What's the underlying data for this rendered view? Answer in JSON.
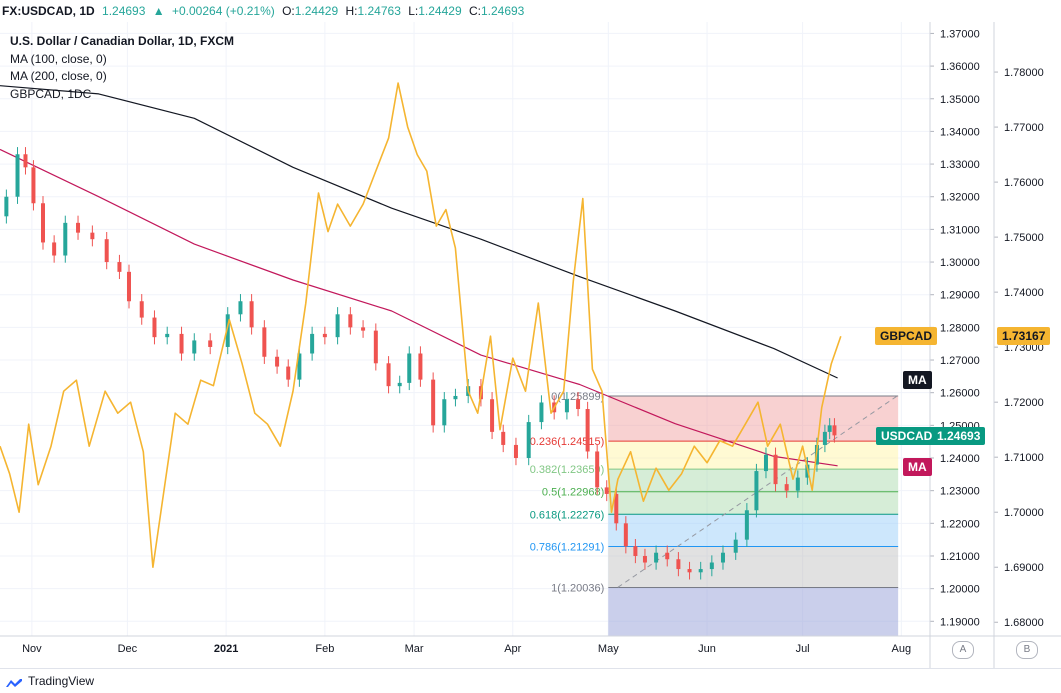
{
  "header": {
    "symbol": "FX:USDCAD, 1D",
    "last": "1.24693",
    "change": "+0.00264 (+0.21%)",
    "o_label": "O:",
    "o": "1.24429",
    "h_label": "H:",
    "h": "1.24763",
    "l_label": "L:",
    "l": "1.24429",
    "c_label": "C:",
    "c": "1.24693"
  },
  "legend": {
    "title": "U.S. Dollar / Canadian Dollar, 1D, FXCM",
    "ma100": "MA (100, close, 0)",
    "ma200": "MA (200, close, 0)",
    "compare": "GBPCAD, 1DC"
  },
  "colors": {
    "up": "#26a69a",
    "down": "#ef5350",
    "gbpcad": "#f5b531",
    "ma100": "#c2185b",
    "ma200": "#131722",
    "fib_0": "#787b86",
    "fib_0236": "#e53935",
    "fib_0382": "#81c784",
    "fib_05": "#4caf50",
    "fib_0618": "#089981",
    "fib_0786": "#2196f3",
    "fib_1": "#787b86"
  },
  "badges": {
    "gbpcad_label": "GBPCAD",
    "gbpcad_value": "1.73167",
    "usdcad_label": "USDCAD",
    "usdcad_value": "1.24693",
    "ma_label_1": "MA",
    "ma_label_2": "MA"
  },
  "footer": {
    "brand": "TradingView",
    "scale_a": "A",
    "scale_b": "B"
  },
  "chart_data": {
    "type": "candlestick",
    "symbol": "USDCAD",
    "x_axis": {
      "ticks": [
        "Nov",
        "Dec",
        "2021",
        "Feb",
        "Mar",
        "Apr",
        "May",
        "Jun",
        "Jul",
        "Aug"
      ],
      "range": [
        "2020-10-22",
        "2021-08-10"
      ]
    },
    "y_axis_left": {
      "label": "USDCAD",
      "ylim": [
        1.1855,
        1.3735
      ],
      "ticks": [
        "1.37000",
        "1.36000",
        "1.35000",
        "1.34000",
        "1.33000",
        "1.32000",
        "1.31000",
        "1.30000",
        "1.29000",
        "1.28000",
        "1.27000",
        "1.26000",
        "1.25000",
        "1.24000",
        "1.23000",
        "1.22000",
        "1.21000",
        "1.20000",
        "1.19000"
      ]
    },
    "y_axis_right": {
      "label": "GBPCAD",
      "ylim": [
        1.6775,
        1.7891
      ],
      "ticks": [
        "1.78000",
        "1.77000",
        "1.76000",
        "1.75000",
        "1.74000",
        "1.73000",
        "1.72000",
        "1.71000",
        "1.70000",
        "1.69000",
        "1.68000"
      ]
    },
    "series": [
      {
        "name": "USDCAD",
        "kind": "candlestick-close-path",
        "points": [
          [
            "2020-10-22",
            1.314
          ],
          [
            "2020-10-26",
            1.32
          ],
          [
            "2020-10-29",
            1.333
          ],
          [
            "2020-10-31",
            1.329
          ],
          [
            "2020-11-03",
            1.318
          ],
          [
            "2020-11-06",
            1.306
          ],
          [
            "2020-11-10",
            1.302
          ],
          [
            "2020-11-13",
            1.312
          ],
          [
            "2020-11-18",
            1.309
          ],
          [
            "2020-11-22",
            1.307
          ],
          [
            "2020-11-27",
            1.3
          ],
          [
            "2020-11-30",
            1.297
          ],
          [
            "2020-12-03",
            1.288
          ],
          [
            "2020-12-08",
            1.283
          ],
          [
            "2020-12-11",
            1.277
          ],
          [
            "2020-12-16",
            1.278
          ],
          [
            "2020-12-20",
            1.272
          ],
          [
            "2020-12-24",
            1.276
          ],
          [
            "2020-12-30",
            1.274
          ],
          [
            "2021-01-04",
            1.284
          ],
          [
            "2021-01-07",
            1.288
          ],
          [
            "2021-01-11",
            1.28
          ],
          [
            "2021-01-15",
            1.271
          ],
          [
            "2021-01-19",
            1.268
          ],
          [
            "2021-01-22",
            1.264
          ],
          [
            "2021-01-26",
            1.272
          ],
          [
            "2021-01-30",
            1.278
          ],
          [
            "2021-02-03",
            1.277
          ],
          [
            "2021-02-07",
            1.284
          ],
          [
            "2021-02-11",
            1.28
          ],
          [
            "2021-02-15",
            1.279
          ],
          [
            "2021-02-19",
            1.269
          ],
          [
            "2021-02-23",
            1.262
          ],
          [
            "2021-02-26",
            1.263
          ],
          [
            "2021-03-01",
            1.272
          ],
          [
            "2021-03-05",
            1.264
          ],
          [
            "2021-03-09",
            1.25
          ],
          [
            "2021-03-12",
            1.258
          ],
          [
            "2021-03-16",
            1.259
          ],
          [
            "2021-03-20",
            1.262
          ],
          [
            "2021-03-24",
            1.258
          ],
          [
            "2021-03-27",
            1.248
          ],
          [
            "2021-03-31",
            1.244
          ],
          [
            "2021-04-04",
            1.24
          ],
          [
            "2021-04-08",
            1.251
          ],
          [
            "2021-04-12",
            1.257
          ],
          [
            "2021-04-16",
            1.254
          ],
          [
            "2021-04-20",
            1.258
          ],
          [
            "2021-04-23",
            1.255
          ],
          [
            "2021-04-26",
            1.242
          ],
          [
            "2021-04-29",
            1.231
          ],
          [
            "2021-05-02",
            1.229
          ],
          [
            "2021-05-05",
            1.22
          ],
          [
            "2021-05-08",
            1.213
          ],
          [
            "2021-05-11",
            1.21
          ],
          [
            "2021-05-14",
            1.208
          ],
          [
            "2021-05-18",
            1.211
          ],
          [
            "2021-05-21",
            1.209
          ],
          [
            "2021-05-25",
            1.206
          ],
          [
            "2021-05-28",
            1.205
          ],
          [
            "2021-06-01",
            1.206
          ],
          [
            "2021-06-04",
            1.208
          ],
          [
            "2021-06-08",
            1.211
          ],
          [
            "2021-06-12",
            1.215
          ],
          [
            "2021-06-15",
            1.224
          ],
          [
            "2021-06-18",
            1.236
          ],
          [
            "2021-06-21",
            1.241
          ],
          [
            "2021-06-24",
            1.232
          ],
          [
            "2021-06-28",
            1.23
          ],
          [
            "2021-07-01",
            1.234
          ],
          [
            "2021-07-04",
            1.238
          ],
          [
            "2021-07-07",
            1.244
          ],
          [
            "2021-07-09",
            1.248
          ],
          [
            "2021-07-10",
            1.25
          ],
          [
            "2021-07-12",
            1.24693
          ]
        ]
      },
      {
        "name": "GBPCAD",
        "kind": "line",
        "points": [
          [
            "2020-10-22",
            1.712
          ],
          [
            "2020-10-25",
            1.707
          ],
          [
            "2020-10-28",
            1.7
          ],
          [
            "2020-10-31",
            1.716
          ],
          [
            "2020-11-03",
            1.705
          ],
          [
            "2020-11-07",
            1.712
          ],
          [
            "2020-11-11",
            1.722
          ],
          [
            "2020-11-15",
            1.724
          ],
          [
            "2020-11-19",
            1.712
          ],
          [
            "2020-11-24",
            1.722
          ],
          [
            "2020-11-28",
            1.718
          ],
          [
            "2020-12-02",
            1.72
          ],
          [
            "2020-12-06",
            1.711
          ],
          [
            "2020-12-09",
            1.69
          ],
          [
            "2020-12-13",
            1.706
          ],
          [
            "2020-12-16",
            1.718
          ],
          [
            "2020-12-20",
            1.716
          ],
          [
            "2020-12-24",
            1.724
          ],
          [
            "2020-12-28",
            1.723
          ],
          [
            "2021-01-02",
            1.735
          ],
          [
            "2021-01-06",
            1.727
          ],
          [
            "2021-01-10",
            1.718
          ],
          [
            "2021-01-14",
            1.716
          ],
          [
            "2021-01-18",
            1.712
          ],
          [
            "2021-01-22",
            1.722
          ],
          [
            "2021-01-26",
            1.738
          ],
          [
            "2021-01-30",
            1.758
          ],
          [
            "2021-02-02",
            1.751
          ],
          [
            "2021-02-05",
            1.756
          ],
          [
            "2021-02-09",
            1.752
          ],
          [
            "2021-02-13",
            1.756
          ],
          [
            "2021-02-17",
            1.762
          ],
          [
            "2021-02-21",
            1.768
          ],
          [
            "2021-02-24",
            1.778
          ],
          [
            "2021-02-27",
            1.77
          ],
          [
            "2021-03-02",
            1.765
          ],
          [
            "2021-03-05",
            1.762
          ],
          [
            "2021-03-08",
            1.752
          ],
          [
            "2021-03-11",
            1.755
          ],
          [
            "2021-03-14",
            1.748
          ],
          [
            "2021-03-18",
            1.722
          ],
          [
            "2021-03-21",
            1.718
          ],
          [
            "2021-03-25",
            1.732
          ],
          [
            "2021-03-28",
            1.715
          ],
          [
            "2021-04-01",
            1.728
          ],
          [
            "2021-04-05",
            1.722
          ],
          [
            "2021-04-09",
            1.738
          ],
          [
            "2021-04-13",
            1.718
          ],
          [
            "2021-04-17",
            1.722
          ],
          [
            "2021-04-20",
            1.742
          ],
          [
            "2021-04-23",
            1.757
          ],
          [
            "2021-04-26",
            1.726
          ],
          [
            "2021-04-29",
            1.722
          ],
          [
            "2021-05-02",
            1.7
          ],
          [
            "2021-05-04",
            1.706
          ],
          [
            "2021-05-08",
            1.711
          ],
          [
            "2021-05-12",
            1.702
          ],
          [
            "2021-05-16",
            1.708
          ],
          [
            "2021-05-20",
            1.704
          ],
          [
            "2021-05-24",
            1.707
          ],
          [
            "2021-05-28",
            1.712
          ],
          [
            "2021-06-01",
            1.709
          ],
          [
            "2021-06-05",
            1.713
          ],
          [
            "2021-06-09",
            1.712
          ],
          [
            "2021-06-13",
            1.716
          ],
          [
            "2021-06-17",
            1.72
          ],
          [
            "2021-06-20",
            1.712
          ],
          [
            "2021-06-24",
            1.716
          ],
          [
            "2021-06-28",
            1.706
          ],
          [
            "2021-07-01",
            1.712
          ],
          [
            "2021-07-04",
            1.704
          ],
          [
            "2021-07-07",
            1.719
          ],
          [
            "2021-07-10",
            1.727
          ],
          [
            "2021-07-13",
            1.732
          ]
        ]
      },
      {
        "name": "MA (100, close, 0)",
        "kind": "line",
        "points": [
          [
            "2020-10-22",
            1.3345
          ],
          [
            "2020-11-22",
            1.32
          ],
          [
            "2020-12-22",
            1.3055
          ],
          [
            "2021-01-22",
            1.2945
          ],
          [
            "2021-02-22",
            1.285
          ],
          [
            "2021-03-22",
            1.2715
          ],
          [
            "2021-04-22",
            1.2625
          ],
          [
            "2021-05-22",
            1.2505
          ],
          [
            "2021-06-22",
            1.2405
          ],
          [
            "2021-07-12",
            1.2376
          ]
        ]
      },
      {
        "name": "MA (200, close, 0)",
        "kind": "line",
        "points": [
          [
            "2020-10-22",
            1.354
          ],
          [
            "2020-11-22",
            1.3515
          ],
          [
            "2020-12-22",
            1.344
          ],
          [
            "2021-01-22",
            1.329
          ],
          [
            "2021-02-22",
            1.3165
          ],
          [
            "2021-03-22",
            1.307
          ],
          [
            "2021-04-22",
            1.2955
          ],
          [
            "2021-05-22",
            1.285
          ],
          [
            "2021-06-22",
            1.2735
          ],
          [
            "2021-07-12",
            1.2645
          ]
        ]
      }
    ],
    "fibonacci": {
      "levels": [
        {
          "ratio": "0",
          "label": "0(1.25899)",
          "price": 1.25899
        },
        {
          "ratio": "0.236",
          "label": "0.236(1.24515)",
          "price": 1.24515
        },
        {
          "ratio": "0.382",
          "label": "0.382(1.23659)",
          "price": 1.23659
        },
        {
          "ratio": "0.5",
          "label": "0.5(1.22968)",
          "price": 1.22968
        },
        {
          "ratio": "0.618",
          "label": "0.618(1.22276)",
          "price": 1.22276
        },
        {
          "ratio": "0.786",
          "label": "0.786(1.21291)",
          "price": 1.21291
        },
        {
          "ratio": "1",
          "label": "1(1.20036)",
          "price": 1.20036
        }
      ],
      "from_date": "2021-05-01",
      "to_date": "2021-07-31",
      "trend_line": [
        [
          "2021-05-04",
          1.2004
        ],
        [
          "2021-07-31",
          1.2592
        ]
      ]
    },
    "grid": true,
    "legend_position": "top-left"
  }
}
